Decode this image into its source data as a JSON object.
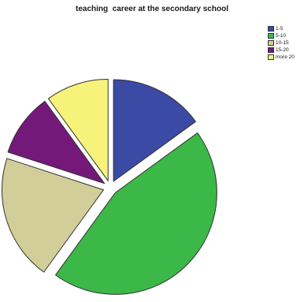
{
  "chart_data": {
    "type": "pie",
    "title": "teaching  career at the secondary school",
    "categories": [
      "1-5",
      "5-10",
      "10-15",
      "15-20",
      "more 20"
    ],
    "values": [
      15,
      45,
      20,
      10,
      10
    ],
    "colors": [
      "#3b4aa5",
      "#3bb847",
      "#d2ce9a",
      "#74197a",
      "#f7f37a"
    ],
    "exploded": true,
    "legend_position": "top-right"
  }
}
